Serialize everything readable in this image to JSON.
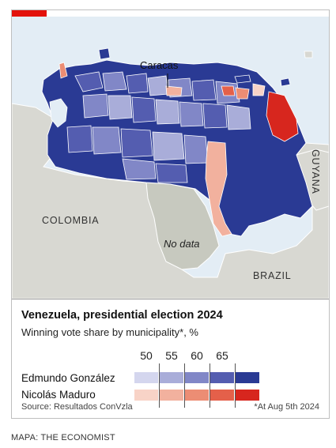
{
  "map": {
    "city_label": "Caracas",
    "country_labels": {
      "colombia": "COLOMBIA",
      "brazil": "BRAZIL",
      "guyana": "GUYANA"
    },
    "no_data_label": "No data"
  },
  "legend": {
    "title": "Venezuela, presidential election 2024",
    "subtitle": "Winning vote share by municipality*, %",
    "scale_ticks": [
      "50",
      "55",
      "60",
      "65"
    ],
    "rows": [
      {
        "label": "Edmundo González",
        "colors": [
          "#d4d6ee",
          "#a9add9",
          "#8187c7",
          "#545db0",
          "#2a3a94"
        ]
      },
      {
        "label": "Nicolás Maduro",
        "colors": [
          "#f8d3c7",
          "#f2b19e",
          "#ec8d74",
          "#e4604a",
          "#d7261e"
        ]
      }
    ],
    "source": "Source: Resultados ConVzla",
    "footnote": "*At Aug 5th 2024"
  },
  "credit": "MAPA: THE ECONOMIST",
  "colors": {
    "sea": "#e3edf5",
    "land": "#d8d8d2",
    "accent": "#e3120b"
  }
}
